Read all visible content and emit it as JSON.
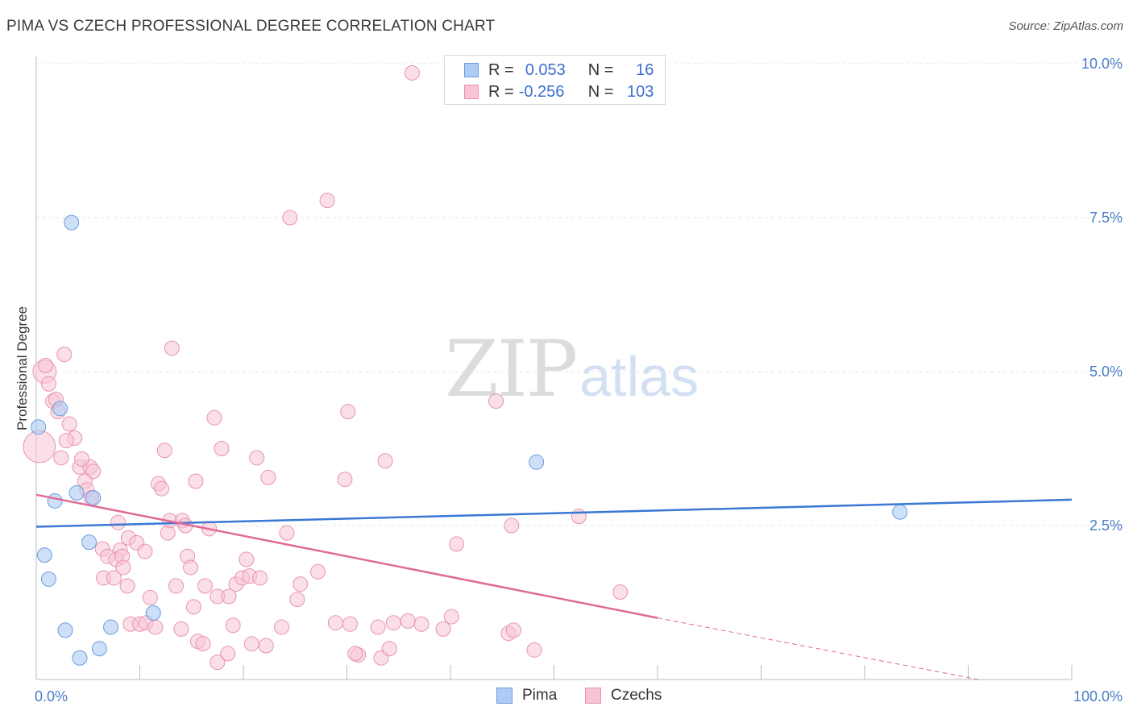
{
  "title": "PIMA VS CZECH PROFESSIONAL DEGREE CORRELATION CHART",
  "source": "Source: ZipAtlas.com",
  "watermark": {
    "part1": "ZIP",
    "part2": "atlas"
  },
  "legend": {
    "rows": [
      {
        "r_label": "R =",
        "r_value": "0.053",
        "n_label": "N =",
        "n_value": "16"
      },
      {
        "r_label": "R =",
        "r_value": "-0.256",
        "n_label": "N =",
        "n_value": "103"
      }
    ]
  },
  "bottom_legend": {
    "pima": "Pima",
    "czechs": "Czechs"
  },
  "colors": {
    "pima_fill": "#aeccf3",
    "pima_stroke": "#6b9be0",
    "pima_line": "#3a78d4",
    "czech_fill": "#f7c4d4",
    "czech_stroke": "#e893ad",
    "czech_line": "#e06a96",
    "tick_text": "#4a7cc7",
    "grid": "#e6e6e6"
  },
  "chart_data": {
    "type": "scatter",
    "title": "PIMA VS CZECH PROFESSIONAL DEGREE CORRELATION CHART",
    "xlabel": "",
    "ylabel": "Professional Degree",
    "xlim": [
      0,
      100
    ],
    "ylim": [
      0,
      10.5
    ],
    "x_tick_labels": [
      "0.0%",
      "100.0%"
    ],
    "y_ticks": [
      2.5,
      5.0,
      7.5,
      10.0
    ],
    "y_tick_labels": [
      "2.5%",
      "5.0%",
      "7.5%",
      "10.0%"
    ],
    "series": [
      {
        "name": "Pima",
        "r": 0.053,
        "n": 16,
        "trend": {
          "x0": 0,
          "y0": 2.48,
          "x1": 100,
          "y1": 2.92
        },
        "points": [
          {
            "x": 0.2,
            "y": 4.1
          },
          {
            "x": 3.4,
            "y": 7.42
          },
          {
            "x": 2.3,
            "y": 4.4
          },
          {
            "x": 3.9,
            "y": 3.03
          },
          {
            "x": 1.8,
            "y": 2.9
          },
          {
            "x": 5.5,
            "y": 2.95
          },
          {
            "x": 5.1,
            "y": 2.23
          },
          {
            "x": 0.8,
            "y": 2.02
          },
          {
            "x": 1.2,
            "y": 1.63
          },
          {
            "x": 11.3,
            "y": 1.08
          },
          {
            "x": 2.8,
            "y": 0.8
          },
          {
            "x": 7.2,
            "y": 0.85
          },
          {
            "x": 6.1,
            "y": 0.5
          },
          {
            "x": 4.2,
            "y": 0.35
          },
          {
            "x": 48.3,
            "y": 3.53
          },
          {
            "x": 83.4,
            "y": 2.72
          }
        ]
      },
      {
        "name": "Czechs",
        "r": -0.256,
        "n": 103,
        "trend": {
          "x0": 0,
          "y0": 3.0,
          "x1": 60,
          "y1": 1.0
        },
        "trend_dashed": {
          "x0": 60,
          "y0": 1.0,
          "x1": 91,
          "y1": 0.0
        },
        "points": [
          {
            "x": 0.3,
            "y": 3.78,
            "size": 2.2
          },
          {
            "x": 0.8,
            "y": 5.0,
            "size": 1.6
          },
          {
            "x": 0.9,
            "y": 5.1
          },
          {
            "x": 1.2,
            "y": 4.8
          },
          {
            "x": 2.7,
            "y": 5.28
          },
          {
            "x": 1.6,
            "y": 4.52
          },
          {
            "x": 1.9,
            "y": 4.55
          },
          {
            "x": 2.1,
            "y": 4.35
          },
          {
            "x": 3.2,
            "y": 4.15
          },
          {
            "x": 3.7,
            "y": 3.92
          },
          {
            "x": 2.9,
            "y": 3.88
          },
          {
            "x": 2.4,
            "y": 3.6
          },
          {
            "x": 4.2,
            "y": 3.45
          },
          {
            "x": 5.2,
            "y": 3.45
          },
          {
            "x": 5.5,
            "y": 3.38
          },
          {
            "x": 4.4,
            "y": 3.58
          },
          {
            "x": 4.7,
            "y": 3.22
          },
          {
            "x": 4.9,
            "y": 3.08
          },
          {
            "x": 5.3,
            "y": 2.95
          },
          {
            "x": 7.9,
            "y": 2.55
          },
          {
            "x": 8.9,
            "y": 2.3
          },
          {
            "x": 9.7,
            "y": 2.22
          },
          {
            "x": 10.5,
            "y": 2.08
          },
          {
            "x": 8.1,
            "y": 2.1
          },
          {
            "x": 6.4,
            "y": 2.12
          },
          {
            "x": 6.9,
            "y": 2.0
          },
          {
            "x": 7.7,
            "y": 1.95
          },
          {
            "x": 8.3,
            "y": 2.0
          },
          {
            "x": 6.5,
            "y": 1.65
          },
          {
            "x": 7.5,
            "y": 1.65
          },
          {
            "x": 8.4,
            "y": 1.82
          },
          {
            "x": 8.8,
            "y": 1.52
          },
          {
            "x": 11.0,
            "y": 1.33
          },
          {
            "x": 11.8,
            "y": 3.18
          },
          {
            "x": 12.1,
            "y": 3.1
          },
          {
            "x": 12.4,
            "y": 3.72
          },
          {
            "x": 13.1,
            "y": 5.38
          },
          {
            "x": 12.7,
            "y": 2.38
          },
          {
            "x": 12.9,
            "y": 2.58
          },
          {
            "x": 14.1,
            "y": 2.58
          },
          {
            "x": 14.4,
            "y": 2.5
          },
          {
            "x": 14.6,
            "y": 2.0
          },
          {
            "x": 14.9,
            "y": 1.82
          },
          {
            "x": 15.4,
            "y": 3.22
          },
          {
            "x": 13.5,
            "y": 1.52
          },
          {
            "x": 15.2,
            "y": 1.18
          },
          {
            "x": 16.3,
            "y": 1.52
          },
          {
            "x": 16.7,
            "y": 2.45
          },
          {
            "x": 17.2,
            "y": 4.25
          },
          {
            "x": 17.5,
            "y": 1.35
          },
          {
            "x": 17.9,
            "y": 3.75
          },
          {
            "x": 18.6,
            "y": 1.35
          },
          {
            "x": 19.3,
            "y": 1.55
          },
          {
            "x": 19.9,
            "y": 1.65
          },
          {
            "x": 20.6,
            "y": 1.68
          },
          {
            "x": 20.3,
            "y": 1.95
          },
          {
            "x": 21.3,
            "y": 3.6
          },
          {
            "x": 22.4,
            "y": 3.28
          },
          {
            "x": 21.6,
            "y": 1.65
          },
          {
            "x": 24.5,
            "y": 7.5
          },
          {
            "x": 24.2,
            "y": 2.38
          },
          {
            "x": 25.5,
            "y": 1.55
          },
          {
            "x": 25.2,
            "y": 1.3
          },
          {
            "x": 27.2,
            "y": 1.75
          },
          {
            "x": 28.1,
            "y": 7.78
          },
          {
            "x": 28.9,
            "y": 0.92
          },
          {
            "x": 29.8,
            "y": 3.25
          },
          {
            "x": 30.1,
            "y": 4.35
          },
          {
            "x": 30.3,
            "y": 0.9
          },
          {
            "x": 31.1,
            "y": 0.4
          },
          {
            "x": 30.8,
            "y": 0.42
          },
          {
            "x": 33.0,
            "y": 0.85
          },
          {
            "x": 33.3,
            "y": 0.35
          },
          {
            "x": 33.7,
            "y": 3.55
          },
          {
            "x": 34.1,
            "y": 0.5
          },
          {
            "x": 34.5,
            "y": 0.92
          },
          {
            "x": 35.9,
            "y": 0.95
          },
          {
            "x": 36.3,
            "y": 9.85
          },
          {
            "x": 37.2,
            "y": 0.9
          },
          {
            "x": 39.3,
            "y": 0.82
          },
          {
            "x": 40.1,
            "y": 1.02
          },
          {
            "x": 40.6,
            "y": 2.2
          },
          {
            "x": 44.4,
            "y": 4.52
          },
          {
            "x": 45.6,
            "y": 0.75
          },
          {
            "x": 46.1,
            "y": 0.8
          },
          {
            "x": 45.9,
            "y": 2.5
          },
          {
            "x": 48.1,
            "y": 0.48
          },
          {
            "x": 52.4,
            "y": 2.65
          },
          {
            "x": 56.4,
            "y": 1.42
          },
          {
            "x": 9.1,
            "y": 0.9
          },
          {
            "x": 10.0,
            "y": 0.9
          },
          {
            "x": 10.6,
            "y": 0.92
          },
          {
            "x": 11.5,
            "y": 0.85
          },
          {
            "x": 14.0,
            "y": 0.82
          },
          {
            "x": 15.6,
            "y": 0.62
          },
          {
            "x": 16.1,
            "y": 0.58
          },
          {
            "x": 17.5,
            "y": 0.28
          },
          {
            "x": 18.5,
            "y": 0.42
          },
          {
            "x": 19.0,
            "y": 0.88
          },
          {
            "x": 20.8,
            "y": 0.58
          },
          {
            "x": 22.2,
            "y": 0.55
          },
          {
            "x": 23.7,
            "y": 0.85
          }
        ]
      }
    ]
  }
}
